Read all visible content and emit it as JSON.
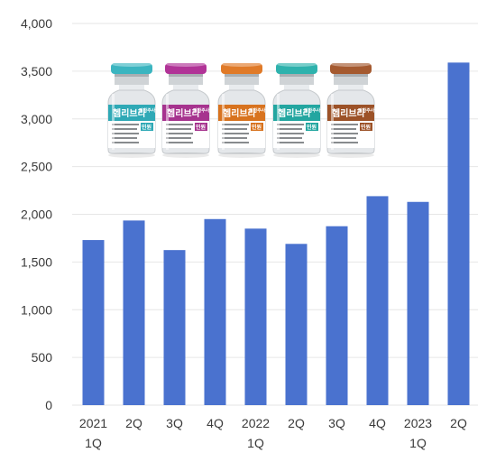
{
  "chart_data": {
    "type": "bar",
    "categories": [
      "2021\n1Q",
      "2Q",
      "3Q",
      "4Q",
      "2022\n1Q",
      "2Q",
      "3Q",
      "4Q",
      "2023\n1Q",
      "2Q"
    ],
    "values": [
      1730,
      1935,
      1625,
      1950,
      1850,
      1690,
      1875,
      2190,
      2130,
      3590
    ],
    "title": "",
    "xlabel": "",
    "ylabel": "",
    "ylim": [
      0,
      4000
    ],
    "yticks": [
      "0",
      "500",
      "1,000",
      "1,500",
      "2,000",
      "2,500",
      "3,000",
      "3,500",
      "4,000"
    ],
    "ytick_values": [
      0,
      500,
      1000,
      1500,
      2000,
      2500,
      3000,
      3500,
      4000
    ],
    "grid": true,
    "bar_color": "#4a72cf"
  },
  "product_image": {
    "vials": [
      {
        "cap_color": "#3bb5c0",
        "label_color": "#2fa9b6",
        "label": "헴리브라",
        "sub": "피하주사",
        "tag": "민원"
      },
      {
        "cap_color": "#b13397",
        "label_color": "#a6338e",
        "label": "헴리브라",
        "sub": "피하주사",
        "tag": "민원"
      },
      {
        "cap_color": "#e07a28",
        "label_color": "#d8731f",
        "label": "헴리브라",
        "sub": "피하주사",
        "tag": "민원"
      },
      {
        "cap_color": "#2eb2ad",
        "label_color": "#23a6a0",
        "label": "헴리브라",
        "sub": "피하주사",
        "tag": "민원"
      },
      {
        "cap_color": "#a55a30",
        "label_color": "#9c5228",
        "label": "헴리브라",
        "sub": "피하주사",
        "tag": "민원"
      }
    ]
  }
}
